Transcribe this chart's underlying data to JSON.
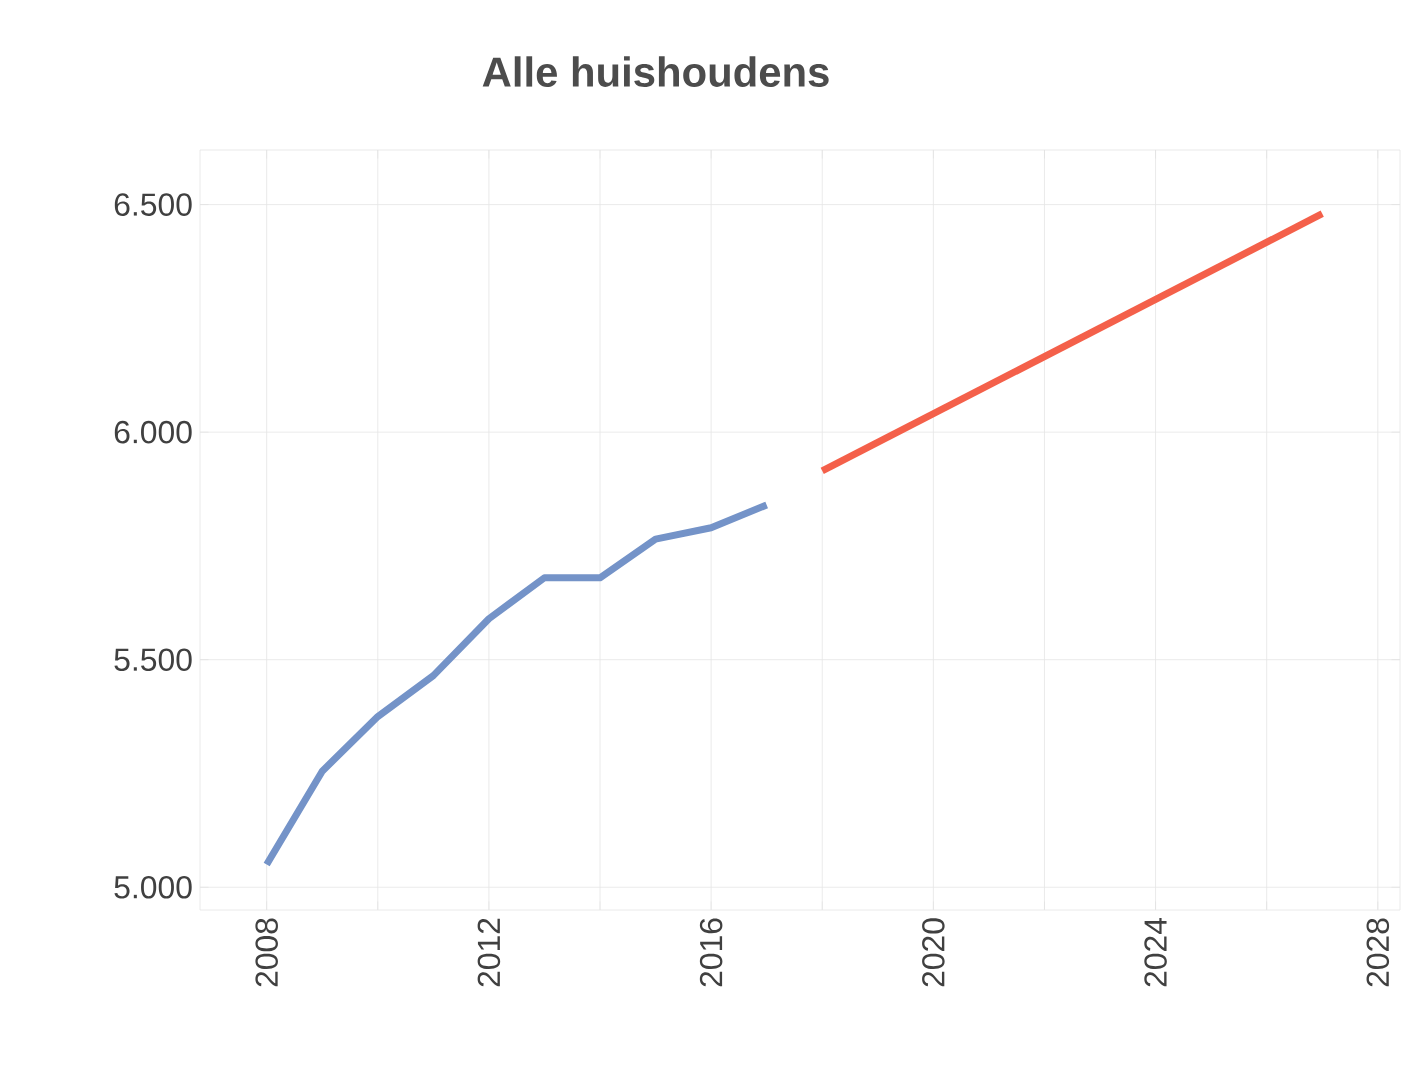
{
  "chart_data": {
    "type": "line",
    "title": "Alle huishoudens",
    "series": [
      {
        "color": "#7493c8",
        "x": [
          2008,
          2009,
          2010,
          2011,
          2012,
          2013,
          2014,
          2015,
          2016,
          2017
        ],
        "values": [
          5050,
          5255,
          5375,
          5465,
          5590,
          5680,
          5680,
          5765,
          5790,
          5840
        ]
      },
      {
        "color": "#f4604a",
        "x": [
          2018,
          2027
        ],
        "values": [
          5915,
          6480
        ]
      }
    ],
    "xlim": [
      2006.8,
      2028.4
    ],
    "xticks": [
      2008,
      {
        "value": 2010,
        "label": null
      },
      2012,
      {
        "value": 2014,
        "label": null
      },
      2016,
      {
        "value": 2018,
        "label": null
      },
      2020,
      {
        "value": 2022,
        "label": null
      },
      2024,
      {
        "value": 2026,
        "label": null
      },
      2028
    ],
    "ylim": [
      4950,
      6620
    ],
    "yticks": [
      {
        "value": 5000,
        "label": "5.000"
      },
      {
        "value": 5500,
        "label": "5.500"
      },
      {
        "value": 6000,
        "label": "6.000"
      },
      {
        "value": 6500,
        "label": "6.500"
      }
    ],
    "grid": true,
    "marker": "none",
    "line_style": "solid"
  }
}
